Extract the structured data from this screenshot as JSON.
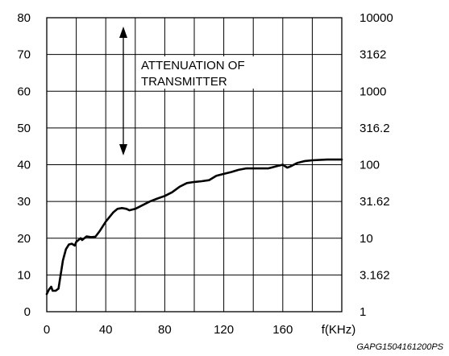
{
  "chart_data": {
    "type": "line",
    "xlabel": "f(KHz)",
    "xlim": [
      0,
      200
    ],
    "ylim": [
      0,
      80
    ],
    "x_ticks": [
      "0",
      "40",
      "80",
      "120",
      "160"
    ],
    "y_left_ticks": [
      "0",
      "10",
      "20",
      "30",
      "40",
      "50",
      "60",
      "70",
      "80"
    ],
    "y_right_ticks": [
      "1",
      "3.162",
      "10",
      "31.62",
      "100",
      "316.2",
      "1000",
      "3162",
      "10000"
    ],
    "grid": true,
    "annotation": [
      "ATTENUATION OF",
      "TRANSMITTER"
    ],
    "footnote": "GAPG1504161200PS",
    "series": [
      {
        "x": [
          0,
          1.5,
          3,
          4,
          6,
          8,
          9,
          11,
          13,
          15,
          17,
          19,
          20,
          23,
          24,
          27,
          30,
          33,
          36,
          40,
          45,
          48,
          51,
          54,
          56,
          60,
          65,
          70,
          75,
          80,
          85,
          90,
          95,
          100,
          105,
          110,
          115,
          120,
          125,
          130,
          135,
          140,
          145,
          150,
          153,
          156,
          160,
          163,
          165,
          170,
          175,
          180,
          190,
          200
        ],
        "values": [
          4.8,
          6.0,
          6.8,
          5.7,
          5.7,
          6.3,
          9.0,
          14.0,
          17.0,
          18.3,
          18.5,
          18.0,
          19.0,
          20.0,
          19.5,
          20.5,
          20.3,
          20.4,
          22.0,
          24.5,
          27.0,
          28.0,
          28.2,
          28.0,
          27.6,
          28.0,
          29.0,
          30.0,
          30.8,
          31.5,
          32.5,
          34.0,
          35.0,
          35.3,
          35.5,
          35.8,
          37.0,
          37.5,
          38.0,
          38.6,
          39.0,
          39.0,
          39.0,
          39.0,
          39.3,
          39.6,
          40.0,
          39.2,
          39.5,
          40.5,
          41.0,
          41.2,
          41.4,
          41.4
        ]
      }
    ]
  }
}
